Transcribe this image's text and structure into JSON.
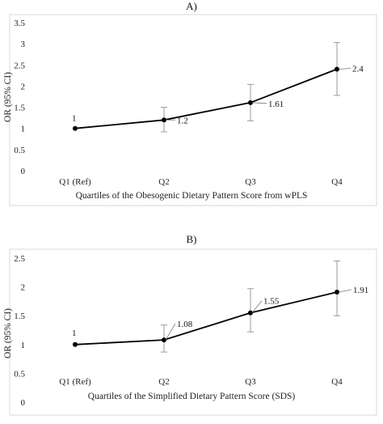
{
  "chart_data": [
    {
      "type": "line",
      "title": "A)",
      "xlabel": "Quartiles  of the Obesogenic Dietary Pattern Score from wPLS",
      "ylabel": "OR (95% CI)",
      "categories": [
        "Q1 (Ref)",
        "Q2",
        "Q3",
        "Q4"
      ],
      "ylim": [
        0,
        3.5
      ],
      "yticks": [
        "0",
        "0.5",
        "1",
        "1.5",
        "2",
        "2.5",
        "3",
        "3.5"
      ],
      "grid": false,
      "series": [
        {
          "values": [
            1,
            1.2,
            1.61,
            2.4
          ],
          "ci_low": [
            null,
            0.92,
            1.18,
            1.78
          ],
          "ci_high": [
            null,
            1.5,
            2.04,
            3.03
          ],
          "labels": [
            "1",
            "1.2",
            "1.61",
            "2.4"
          ]
        }
      ]
    },
    {
      "type": "line",
      "title": "B)",
      "xlabel": "Quartiles of the Simplified Dietary Pattern Score (SDS)",
      "ylabel": "OR (95% CI)",
      "categories": [
        "Q1 (Ref)",
        "Q2",
        "Q3",
        "Q4"
      ],
      "ylim": [
        0,
        2.5
      ],
      "yticks": [
        "0",
        "0.5",
        "1",
        "1.5",
        "2",
        "2.5"
      ],
      "grid": false,
      "series": [
        {
          "values": [
            1,
            1.08,
            1.55,
            1.91
          ],
          "ci_low": [
            null,
            0.87,
            1.22,
            1.5
          ],
          "ci_high": [
            null,
            1.34,
            1.97,
            2.45
          ],
          "labels": [
            "1",
            "1.08",
            "1.55",
            "1.91"
          ]
        }
      ]
    }
  ]
}
